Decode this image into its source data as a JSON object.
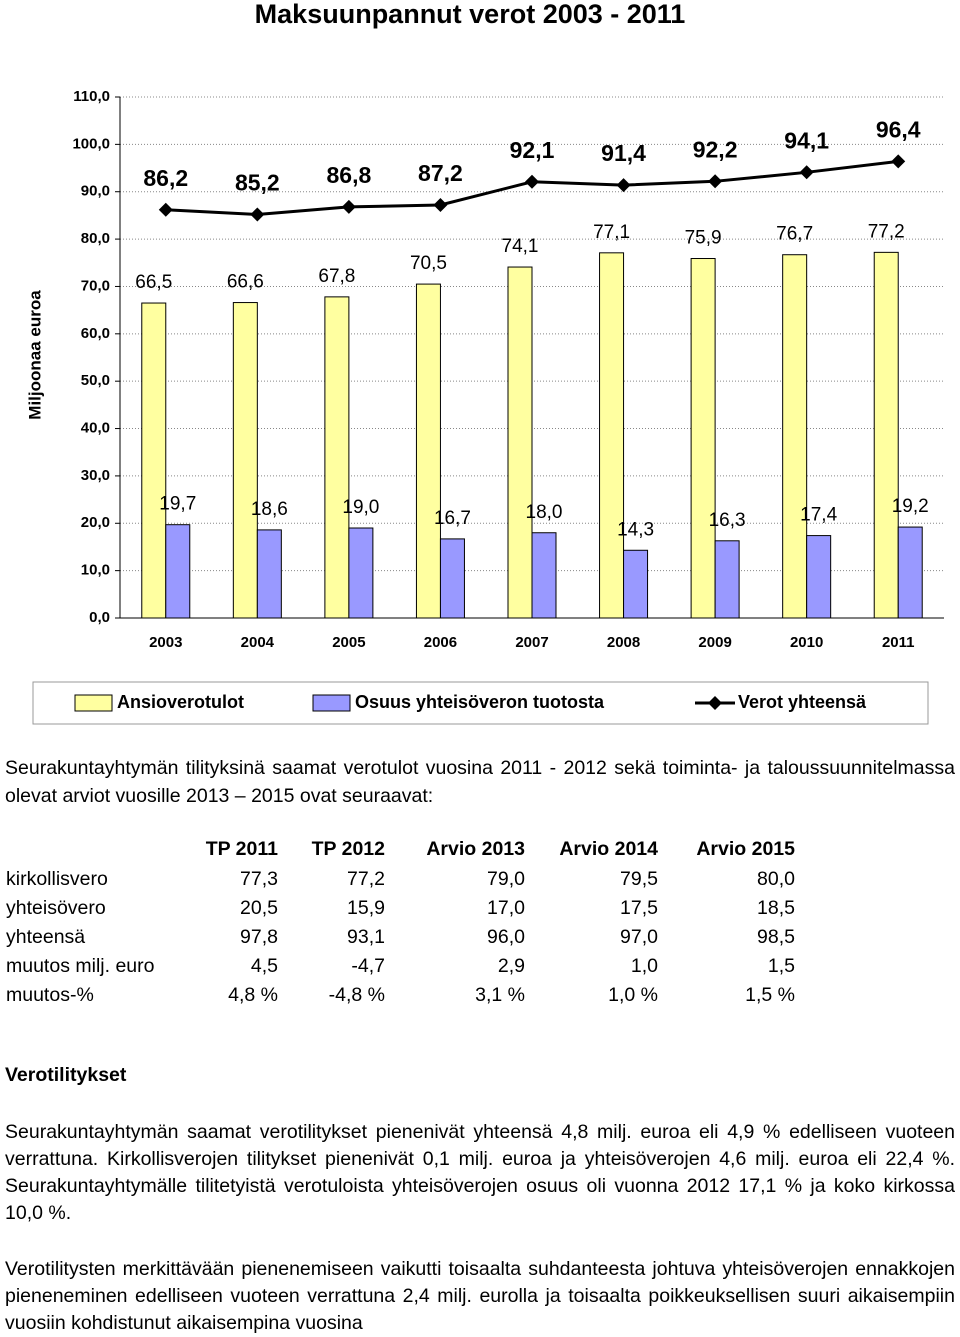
{
  "chart_data": {
    "type": "bar",
    "title": "Maksuunpannut verot 2003 - 2011",
    "y_label": "Miljoonaa euroa",
    "categories": [
      "2003",
      "2004",
      "2005",
      "2006",
      "2007",
      "2008",
      "2009",
      "2010",
      "2011"
    ],
    "ylim": [
      0,
      110
    ],
    "yticks": [
      {
        "value": 0,
        "label": "0,0"
      },
      {
        "value": 10,
        "label": "10,0"
      },
      {
        "value": 20,
        "label": "20,0"
      },
      {
        "value": 30,
        "label": "30,0"
      },
      {
        "value": 40,
        "label": "40,0"
      },
      {
        "value": 50,
        "label": "50,0"
      },
      {
        "value": 60,
        "label": "60,0"
      },
      {
        "value": 70,
        "label": "70,0"
      },
      {
        "value": 80,
        "label": "80,0"
      },
      {
        "value": 90,
        "label": "90,0"
      },
      {
        "value": 100,
        "label": "100,0"
      },
      {
        "value": 110,
        "label": "110,0"
      }
    ],
    "grid": true,
    "series": [
      {
        "name": "Ansioverotulot",
        "color": "#ffffa0",
        "values": [
          66.5,
          66.6,
          67.8,
          70.5,
          74.1,
          77.1,
          75.9,
          76.7,
          77.2
        ],
        "value_labels": [
          "66,5",
          "66,6",
          "67,8",
          "70,5",
          "74,1",
          "77,1",
          "75,9",
          "76,7",
          "77,2"
        ]
      },
      {
        "name": "Osuus yhteisöveron tuotosta",
        "color": "#9999ff",
        "values": [
          19.7,
          18.6,
          19.0,
          16.7,
          18.0,
          14.3,
          16.3,
          17.4,
          19.2
        ],
        "value_labels": [
          "19,7",
          "18,6",
          "19,0",
          "16,7",
          "18,0",
          "14,3",
          "16,3",
          "17,4",
          "19,2"
        ]
      },
      {
        "name": "Verot yhteensä",
        "type": "line",
        "color": "#000000",
        "values": [
          86.2,
          85.2,
          86.8,
          87.2,
          92.1,
          91.4,
          92.2,
          94.1,
          96.4
        ],
        "value_labels": [
          "86,2",
          "85,2",
          "86,8",
          "87,2",
          "92,1",
          "91,4",
          "92,2",
          "94,1",
          "96,4"
        ]
      }
    ]
  },
  "intro": "Seurakuntayhtymän tilityksinä saamat verotulot vuosina 2011 - 2012 sekä toiminta- ja taloussuunnitelmassa olevat arviot vuosille 2013 – 2015 ovat seuraavat:",
  "table": {
    "header": [
      "TP 2011",
      "TP 2012",
      "Arvio 2013",
      "Arvio 2014",
      "Arvio 2015"
    ],
    "rows": [
      [
        "kirkollisvero",
        "77,3",
        "77,2",
        "79,0",
        "79,5",
        "80,0"
      ],
      [
        "yhteisövero",
        "20,5",
        "15,9",
        "17,0",
        "17,5",
        "18,5"
      ],
      [
        "yhteensä",
        "97,8",
        "93,1",
        "96,0",
        "97,0",
        "98,5"
      ],
      [
        "muutos milj. euro",
        "4,5",
        "-4,7",
        "2,9",
        "1,0",
        "1,5"
      ],
      [
        "muutos-%",
        "4,8 %",
        "-4,8 %",
        "3,1 %",
        "1,0 %",
        "1,5 %"
      ]
    ]
  },
  "section": {
    "heading": "Verotilitykset",
    "paragraphs": [
      "Seurakuntayhtymän saamat verotilitykset pienenivät yhteensä 4,8 milj. euroa eli 4,9 % edelliseen vuoteen verrattuna. Kirkollisverojen tilitykset pienenivät 0,1 milj. euroa ja yhteisöverojen 4,6 milj. euroa eli 22,4 %. Seurakuntayhtymälle tilitetyistä verotuloista yhteisöverojen osuus oli vuonna 2012 17,1 % ja koko kirkossa 10,0 %.",
      "Verotilitysten merkittävään pienenemiseen vaikutti toisaalta suhdanteesta johtuva yhteisöverojen ennakkojen pieneneminen edelliseen vuoteen verrattuna 2,4 milj. eurolla ja toisaalta poikkeuksellisen suuri aikaisempiin vuosiin kohdistunut aikaisempina vuosina"
    ]
  }
}
